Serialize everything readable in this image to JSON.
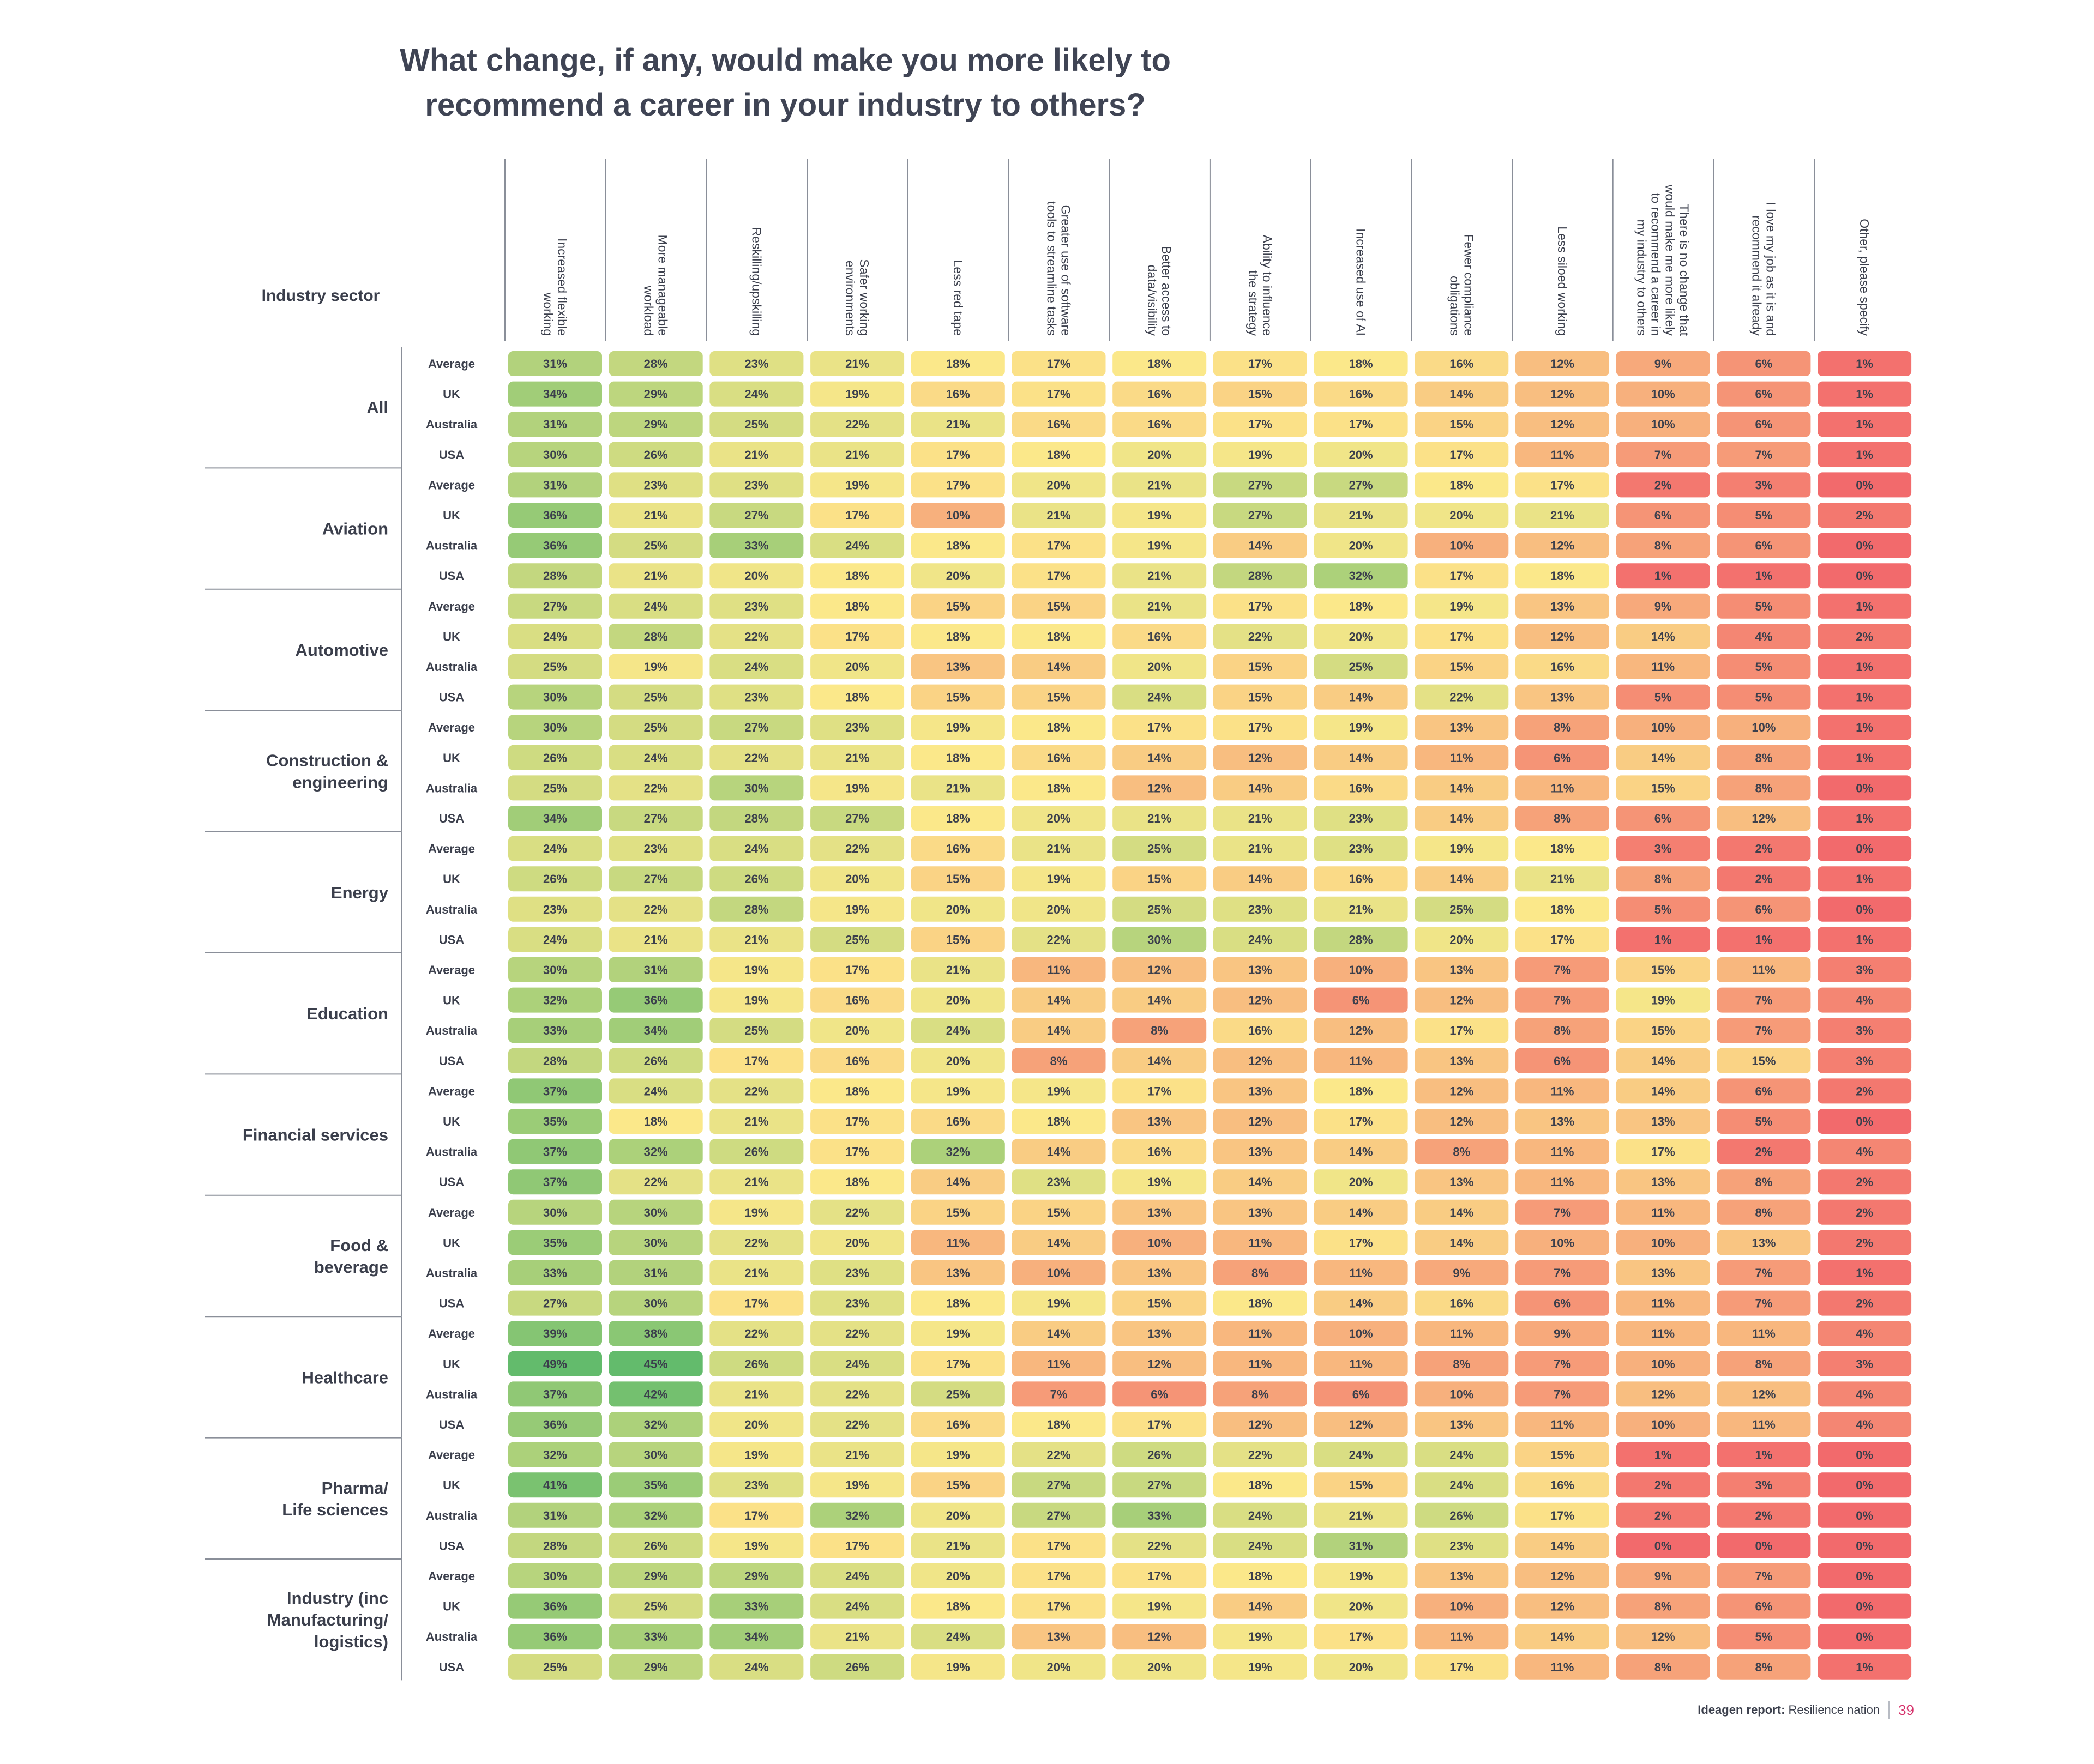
{
  "title_line1": "What change, if any, would make you more likely to",
  "title_line2": "recommend a career in your industry to others?",
  "footer": {
    "brand": "Ideagen report:",
    "report": "Resilience nation",
    "page": "39"
  },
  "chart_data": {
    "type": "heatmap",
    "row_header": "Industry sector",
    "columns": [
      [
        "Increased flexible",
        "working"
      ],
      [
        "More manageable",
        "workload"
      ],
      [
        "Reskilling/upskilling"
      ],
      [
        "Safer working",
        "environments"
      ],
      [
        "Less red tape"
      ],
      [
        "Greater use of software",
        "tools to streamline tasks"
      ],
      [
        "Better access to",
        "data/visibility"
      ],
      [
        "Ability to influence",
        "the strategy"
      ],
      [
        "Increased use of AI"
      ],
      [
        "Fewer compliance",
        "obligations"
      ],
      [
        "Less siloed working"
      ],
      [
        "There is no change that",
        "would make me more likely",
        "to recommend a career in",
        "my industry to others"
      ],
      [
        "I love my job as it is and",
        "recommend it already"
      ],
      [
        "Other, please specify"
      ]
    ],
    "row_labels": [
      "Average",
      "UK",
      "Australia",
      "USA"
    ],
    "color_scale": {
      "low": "#f26a6c",
      "mid": "#fbe88a",
      "high": "#63bb6c"
    },
    "groups": [
      {
        "name": [
          "All"
        ],
        "rows": [
          [
            31,
            28,
            23,
            21,
            18,
            17,
            18,
            17,
            18,
            16,
            12,
            9,
            6,
            1
          ],
          [
            34,
            29,
            24,
            19,
            16,
            17,
            16,
            15,
            16,
            14,
            12,
            10,
            6,
            1
          ],
          [
            31,
            29,
            25,
            22,
            21,
            16,
            16,
            17,
            17,
            15,
            12,
            10,
            6,
            1
          ],
          [
            30,
            26,
            21,
            21,
            17,
            18,
            20,
            19,
            20,
            17,
            11,
            7,
            7,
            1
          ]
        ]
      },
      {
        "name": [
          "Aviation"
        ],
        "rows": [
          [
            31,
            23,
            23,
            19,
            17,
            20,
            21,
            27,
            27,
            18,
            17,
            2,
            3,
            0
          ],
          [
            36,
            21,
            27,
            17,
            10,
            21,
            19,
            27,
            21,
            20,
            21,
            6,
            5,
            2
          ],
          [
            36,
            25,
            33,
            24,
            18,
            17,
            19,
            14,
            20,
            10,
            12,
            8,
            6,
            0
          ],
          [
            28,
            21,
            20,
            18,
            20,
            17,
            21,
            28,
            32,
            17,
            18,
            1,
            1,
            0
          ]
        ]
      },
      {
        "name": [
          "Automotive"
        ],
        "rows": [
          [
            27,
            24,
            23,
            18,
            15,
            15,
            21,
            17,
            18,
            19,
            13,
            9,
            5,
            1
          ],
          [
            24,
            28,
            22,
            17,
            18,
            18,
            16,
            22,
            20,
            17,
            12,
            14,
            4,
            2
          ],
          [
            25,
            19,
            24,
            20,
            13,
            14,
            20,
            15,
            25,
            15,
            16,
            11,
            5,
            1
          ],
          [
            30,
            25,
            23,
            18,
            15,
            15,
            24,
            15,
            14,
            22,
            13,
            5,
            5,
            1
          ]
        ]
      },
      {
        "name": [
          "Construction &",
          "engineering"
        ],
        "rows": [
          [
            30,
            25,
            27,
            23,
            19,
            18,
            17,
            17,
            19,
            13,
            8,
            10,
            10,
            1
          ],
          [
            26,
            24,
            22,
            21,
            18,
            16,
            14,
            12,
            14,
            11,
            6,
            14,
            8,
            1
          ],
          [
            25,
            22,
            30,
            19,
            21,
            18,
            12,
            14,
            16,
            14,
            11,
            15,
            8,
            0
          ],
          [
            34,
            27,
            28,
            27,
            18,
            20,
            21,
            21,
            23,
            14,
            8,
            6,
            12,
            1
          ]
        ]
      },
      {
        "name": [
          "Energy"
        ],
        "rows": [
          [
            24,
            23,
            24,
            22,
            16,
            21,
            25,
            21,
            23,
            19,
            18,
            3,
            2,
            0
          ],
          [
            26,
            27,
            26,
            20,
            15,
            19,
            15,
            14,
            16,
            14,
            21,
            8,
            2,
            1
          ],
          [
            23,
            22,
            28,
            19,
            20,
            20,
            25,
            23,
            21,
            25,
            18,
            5,
            6,
            0
          ],
          [
            24,
            21,
            21,
            25,
            15,
            22,
            30,
            24,
            28,
            20,
            17,
            1,
            1,
            1
          ]
        ]
      },
      {
        "name": [
          "Education"
        ],
        "rows": [
          [
            30,
            31,
            19,
            17,
            21,
            11,
            12,
            13,
            10,
            13,
            7,
            15,
            11,
            3
          ],
          [
            32,
            36,
            19,
            16,
            20,
            14,
            14,
            12,
            6,
            12,
            7,
            19,
            7,
            4
          ],
          [
            33,
            34,
            25,
            20,
            24,
            14,
            8,
            16,
            12,
            17,
            8,
            15,
            7,
            3
          ],
          [
            28,
            26,
            17,
            16,
            20,
            8,
            14,
            12,
            11,
            13,
            6,
            14,
            15,
            3
          ]
        ]
      },
      {
        "name": [
          "Financial services"
        ],
        "rows": [
          [
            37,
            24,
            22,
            18,
            19,
            19,
            17,
            13,
            18,
            12,
            11,
            14,
            6,
            2
          ],
          [
            35,
            18,
            21,
            17,
            16,
            18,
            13,
            12,
            17,
            12,
            13,
            13,
            5,
            0
          ],
          [
            37,
            32,
            26,
            17,
            32,
            14,
            16,
            13,
            14,
            8,
            11,
            17,
            2,
            4
          ],
          [
            37,
            22,
            21,
            18,
            14,
            23,
            19,
            14,
            20,
            13,
            11,
            13,
            8,
            2
          ]
        ]
      },
      {
        "name": [
          "Food &",
          "beverage"
        ],
        "rows": [
          [
            30,
            30,
            19,
            22,
            15,
            15,
            13,
            13,
            14,
            14,
            7,
            11,
            8,
            2
          ],
          [
            35,
            30,
            22,
            20,
            11,
            14,
            10,
            11,
            17,
            14,
            10,
            10,
            13,
            2
          ],
          [
            33,
            31,
            21,
            23,
            13,
            10,
            13,
            8,
            11,
            9,
            7,
            13,
            7,
            1
          ],
          [
            27,
            30,
            17,
            23,
            18,
            19,
            15,
            18,
            14,
            16,
            6,
            11,
            7,
            2
          ]
        ]
      },
      {
        "name": [
          "Healthcare"
        ],
        "rows": [
          [
            39,
            38,
            22,
            22,
            19,
            14,
            13,
            11,
            10,
            11,
            9,
            11,
            11,
            4
          ],
          [
            49,
            45,
            26,
            24,
            17,
            11,
            12,
            11,
            11,
            8,
            7,
            10,
            8,
            3
          ],
          [
            37,
            42,
            21,
            22,
            25,
            7,
            6,
            8,
            6,
            10,
            7,
            12,
            12,
            4
          ],
          [
            36,
            32,
            20,
            22,
            16,
            18,
            17,
            12,
            12,
            13,
            11,
            10,
            11,
            4
          ]
        ]
      },
      {
        "name": [
          "Pharma/",
          "Life sciences"
        ],
        "rows": [
          [
            32,
            30,
            19,
            21,
            19,
            22,
            26,
            22,
            24,
            24,
            15,
            1,
            1,
            0
          ],
          [
            41,
            35,
            23,
            19,
            15,
            27,
            27,
            18,
            15,
            24,
            16,
            2,
            3,
            0
          ],
          [
            31,
            32,
            17,
            32,
            20,
            27,
            33,
            24,
            21,
            26,
            17,
            2,
            2,
            0
          ],
          [
            28,
            26,
            19,
            17,
            21,
            17,
            22,
            24,
            31,
            23,
            14,
            0,
            0,
            0
          ]
        ]
      },
      {
        "name": [
          "Industry (inc",
          "Manufacturing/",
          "logistics)"
        ],
        "rows": [
          [
            30,
            29,
            29,
            24,
            20,
            17,
            17,
            18,
            19,
            13,
            12,
            9,
            7,
            0
          ],
          [
            36,
            25,
            33,
            24,
            18,
            17,
            19,
            14,
            20,
            10,
            12,
            8,
            6,
            0
          ],
          [
            36,
            33,
            34,
            21,
            24,
            13,
            12,
            19,
            17,
            11,
            14,
            12,
            5,
            0
          ],
          [
            25,
            29,
            24,
            26,
            19,
            20,
            20,
            19,
            20,
            17,
            11,
            8,
            8,
            1
          ]
        ]
      }
    ]
  }
}
